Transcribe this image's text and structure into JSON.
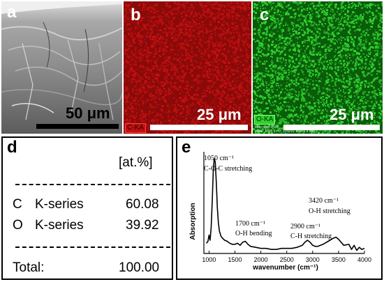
{
  "panels": {
    "a": {
      "letter": "a",
      "scale_label": "50 μm"
    },
    "b": {
      "letter": "b",
      "map_label": "C-KA",
      "scale_label": "25 μm"
    },
    "c": {
      "letter": "c",
      "map_label": "O-KA",
      "scale_label": "25 μm",
      "meta_line1": "Map data 1030",
      "meta_line2": "MAG: 1000 x  HV: 10.0 kV  WD: 8.4 mm"
    },
    "d": {
      "letter": "d",
      "unit_header": "[at.%]",
      "rows": [
        {
          "element": "C",
          "series": "K-series",
          "value": "60.08"
        },
        {
          "element": "O",
          "series": "K-series",
          "value": "39.92"
        }
      ],
      "total_label": "Total:",
      "total_value": "100.00",
      "dashes": "----------------------------------"
    },
    "e": {
      "letter": "e"
    }
  },
  "colors": {
    "carbon_map": "#c41010",
    "oxygen_map": "#2fd12f",
    "border": "#000000"
  },
  "chart_data": {
    "type": "line",
    "title": "",
    "xlabel": "wavenumber (cm⁻¹)",
    "ylabel": "Absorption",
    "xlim": [
      900,
      4000
    ],
    "xticks": [
      1000,
      1500,
      2000,
      2500,
      3000,
      3500,
      4000
    ],
    "ylim": [
      0,
      1
    ],
    "yticks": false,
    "grid": false,
    "series": [
      {
        "x": [
          950,
          980,
          1000,
          1020,
          1040,
          1060,
          1080,
          1100,
          1120,
          1140,
          1160,
          1180,
          1200,
          1230,
          1260,
          1300,
          1350,
          1400,
          1450,
          1500,
          1550,
          1600,
          1650,
          1700,
          1750,
          1800,
          1900,
          2000,
          2100,
          2200,
          2300,
          2400,
          2500,
          2600,
          2700,
          2800,
          2850,
          2900,
          2950,
          3000,
          3050,
          3100,
          3200,
          3300,
          3400,
          3450,
          3500,
          3600,
          3700,
          3750,
          3800,
          3850,
          3900,
          3950,
          4000
        ],
        "y": [
          0.1,
          0.12,
          0.18,
          0.13,
          0.25,
          0.5,
          0.8,
          0.93,
          0.9,
          0.7,
          0.45,
          0.3,
          0.22,
          0.17,
          0.15,
          0.13,
          0.12,
          0.1,
          0.09,
          0.09,
          0.1,
          0.08,
          0.11,
          0.12,
          0.09,
          0.07,
          0.06,
          0.05,
          0.05,
          0.04,
          0.04,
          0.05,
          0.05,
          0.05,
          0.06,
          0.08,
          0.11,
          0.13,
          0.11,
          0.08,
          0.07,
          0.07,
          0.09,
          0.12,
          0.15,
          0.16,
          0.14,
          0.08,
          0.09,
          0.04,
          0.08,
          0.03,
          0.06,
          0.04,
          0.05
        ]
      }
    ],
    "annotations": [
      {
        "wavenumber": "1050 cm⁻¹",
        "label": "C-O-C stretching"
      },
      {
        "wavenumber": "1700 cm⁻¹",
        "label": "O-H bending"
      },
      {
        "wavenumber": "2900 cm⁻¹",
        "label": "C-H stretching"
      },
      {
        "wavenumber": "3420 cm⁻¹",
        "label": "O-H stretching"
      }
    ]
  }
}
